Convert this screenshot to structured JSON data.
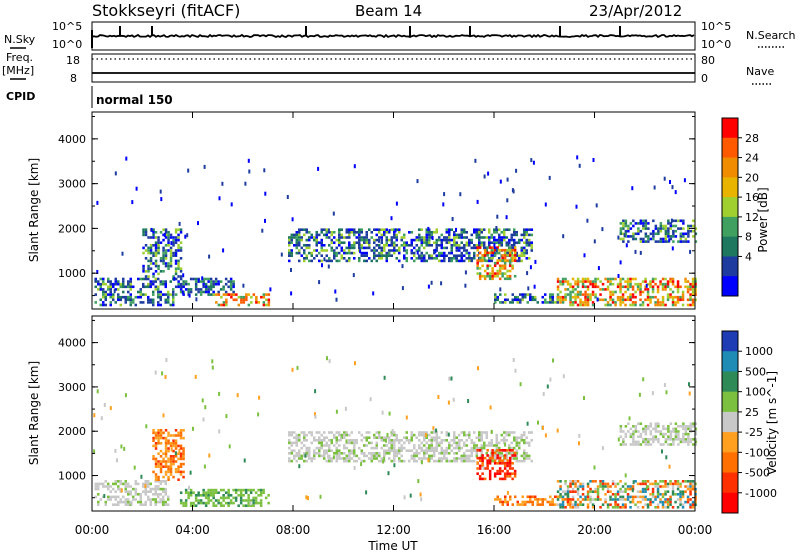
{
  "header": {
    "title": "Stokkseyri (fitACF)",
    "beam": "Beam 14",
    "date": "23/Apr/2012"
  },
  "status_panels": {
    "nsky_label": "N.Sky",
    "nsearch_label": "N.Search",
    "nsky_ticks": [
      "10^5",
      "10^0"
    ],
    "nsearch_ticks": [
      "10^5",
      "10^0"
    ],
    "freq_label": "Freq.",
    "freq_unit": "[MHz]",
    "freq_ticks": [
      "18",
      "8"
    ],
    "nave_label": "Nave",
    "nave_ticks": [
      "80",
      "0"
    ],
    "cpid_label": "CPID",
    "cpid_value": "normal 150"
  },
  "chart_data": [
    {
      "type": "heatmap",
      "panel": "power",
      "ylabel": "Slant Range [km]",
      "yticks": [
        1000,
        2000,
        3000,
        4000
      ],
      "ylim": [
        200,
        4600
      ],
      "xticks": [
        "00:00",
        "04:00",
        "08:00",
        "12:00",
        "16:00",
        "20:00",
        "00:00"
      ],
      "xlim_hours": [
        0,
        24
      ],
      "colorbar": {
        "label": "Power [dB]",
        "ticks": [
          "28",
          "24",
          "20",
          "16",
          "12",
          "8",
          "4"
        ],
        "colors": [
          "#ff0000",
          "#ff5a00",
          "#f08c00",
          "#e8b400",
          "#a0d030",
          "#40a060",
          "#1e7860",
          "#1e3ca0",
          "#0000ff"
        ]
      },
      "echo_regions": [
        {
          "t0": 0.1,
          "t1": 3.2,
          "r0": 300,
          "r1": 900,
          "level": "mid"
        },
        {
          "t0": 2.0,
          "t1": 3.5,
          "r0": 900,
          "r1": 2000,
          "level": "mid"
        },
        {
          "t0": 3.2,
          "t1": 5.6,
          "r0": 550,
          "r1": 900,
          "level": "low"
        },
        {
          "t0": 4.8,
          "t1": 7.0,
          "r0": 300,
          "r1": 550,
          "level": "high"
        },
        {
          "t0": 7.8,
          "t1": 17.5,
          "r0": 1300,
          "r1": 2000,
          "level": "mid"
        },
        {
          "t0": 15.3,
          "t1": 16.8,
          "r0": 900,
          "r1": 1600,
          "level": "high"
        },
        {
          "t0": 16.0,
          "t1": 18.5,
          "r0": 350,
          "r1": 550,
          "level": "mid"
        },
        {
          "t0": 18.5,
          "t1": 24.0,
          "r0": 280,
          "r1": 900,
          "level": "high"
        },
        {
          "t0": 21.0,
          "t1": 24.0,
          "r0": 1700,
          "r1": 2200,
          "level": "mid"
        }
      ]
    },
    {
      "type": "heatmap",
      "panel": "velocity",
      "ylabel": "Slant Range [km]",
      "xlabel": "Time UT",
      "yticks": [
        1000,
        2000,
        3000,
        4000
      ],
      "ylim": [
        200,
        4600
      ],
      "xticks": [
        "00:00",
        "04:00",
        "08:00",
        "12:00",
        "16:00",
        "20:00",
        "00:00"
      ],
      "xlim_hours": [
        0,
        24
      ],
      "colorbar": {
        "label": "Velocity [m s^-1]",
        "ticks": [
          "1000",
          "500",
          "100",
          "25",
          "-25",
          "-100",
          "-500",
          "-1000"
        ],
        "colors": [
          "#1e3cb4",
          "#1e8cb4",
          "#2e8b57",
          "#7cc040",
          "#c8c8c8",
          "#ffa020",
          "#ff7000",
          "#ff3000",
          "#ff0000"
        ]
      },
      "echo_regions": [
        {
          "t0": 0.1,
          "t1": 3.0,
          "r0": 350,
          "r1": 900,
          "level": "gray"
        },
        {
          "t0": 2.4,
          "t1": 3.6,
          "r0": 900,
          "r1": 2050,
          "level": "orange"
        },
        {
          "t0": 3.5,
          "t1": 7.0,
          "r0": 300,
          "r1": 700,
          "level": "green"
        },
        {
          "t0": 7.8,
          "t1": 17.5,
          "r0": 1300,
          "r1": 2000,
          "level": "gray"
        },
        {
          "t0": 15.3,
          "t1": 16.8,
          "r0": 900,
          "r1": 1600,
          "level": "red"
        },
        {
          "t0": 16.0,
          "t1": 19.0,
          "r0": 350,
          "r1": 550,
          "level": "orange"
        },
        {
          "t0": 18.5,
          "t1": 24.0,
          "r0": 280,
          "r1": 900,
          "level": "mixed"
        },
        {
          "t0": 21.0,
          "t1": 24.0,
          "r0": 1700,
          "r1": 2200,
          "level": "gray"
        }
      ]
    }
  ]
}
